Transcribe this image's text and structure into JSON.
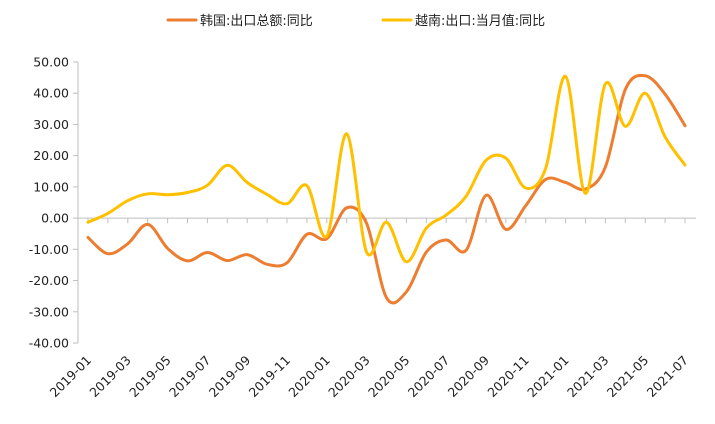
{
  "chart_data": {
    "type": "line",
    "x": [
      "2019-01",
      "2019-02",
      "2019-03",
      "2019-04",
      "2019-05",
      "2019-06",
      "2019-07",
      "2019-08",
      "2019-09",
      "2019-10",
      "2019-11",
      "2019-12",
      "2020-01",
      "2020-02",
      "2020-03",
      "2020-04",
      "2020-05",
      "2020-06",
      "2020-07",
      "2020-08",
      "2020-09",
      "2020-10",
      "2020-11",
      "2020-12",
      "2021-01",
      "2021-02",
      "2021-03",
      "2021-04",
      "2021-05",
      "2021-06",
      "2021-07"
    ],
    "x_tick_labels": [
      "2019-01",
      "2019-03",
      "2019-05",
      "2019-07",
      "2019-09",
      "2019-11",
      "2020-01",
      "2020-03",
      "2020-05",
      "2020-07",
      "2020-09",
      "2020-11",
      "2021-01",
      "2021-03",
      "2021-05",
      "2021-07"
    ],
    "y_tick_labels": [
      "50.00",
      "40.00",
      "30.00",
      "20.00",
      "10.00",
      "0.00",
      "-10.00",
      "-20.00",
      "-30.00",
      "-40.00"
    ],
    "ylim": [
      -40,
      50
    ],
    "series": [
      {
        "name": "韩国:出口总额:同比",
        "color": "#ED7D31",
        "values": [
          -6.2,
          -11.4,
          -8.2,
          -2.0,
          -9.7,
          -13.7,
          -11.0,
          -13.6,
          -11.7,
          -14.8,
          -14.3,
          -5.2,
          -6.6,
          3.3,
          -1.7,
          -25.5,
          -23.6,
          -10.9,
          -7.0,
          -10.3,
          7.3,
          -3.6,
          4.0,
          12.4,
          11.4,
          9.3,
          16.4,
          41.2,
          45.6,
          39.7,
          29.6
        ]
      },
      {
        "name": "越南:出口:当月值:同比",
        "color": "#FFC000",
        "values": [
          -1.3,
          1.5,
          5.6,
          7.8,
          7.5,
          8.2,
          10.5,
          16.9,
          11.4,
          7.6,
          4.6,
          10.4,
          -5.8,
          27.0,
          -10.9,
          -1.3,
          -14.0,
          -3.2,
          1.0,
          7.0,
          18.5,
          19.2,
          9.6,
          16.0,
          45.4,
          7.9,
          43.0,
          29.4,
          40.0,
          26.0,
          17.0
        ]
      }
    ]
  }
}
